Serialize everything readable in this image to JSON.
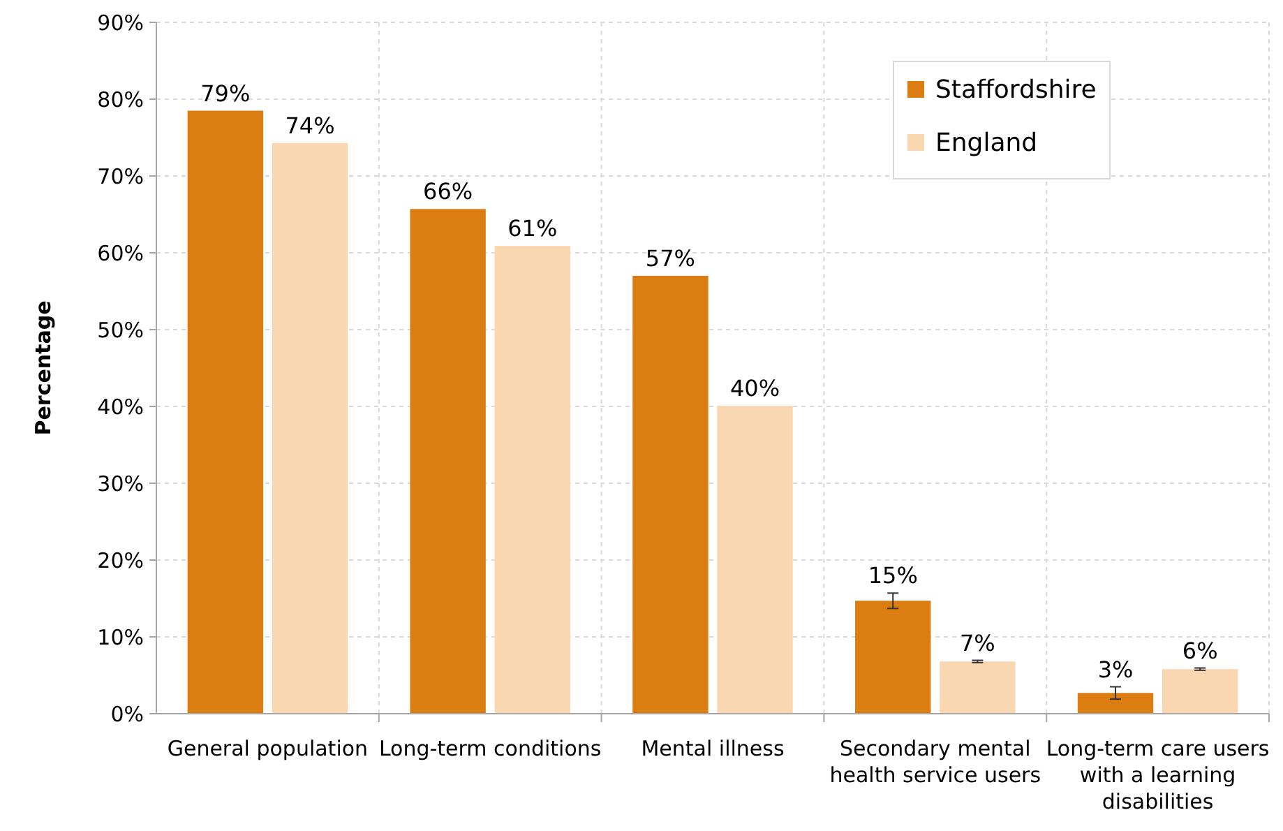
{
  "chart_data": {
    "type": "bar",
    "ylabel": "Percentage",
    "categories": [
      "General population",
      "Long-term conditions",
      "Mental illness",
      "Secondary mental health service users",
      "Long-term care users with a learning disabilities"
    ],
    "series": [
      {
        "name": "Staffordshire",
        "color": "#dc7d11",
        "values": [
          78.5,
          65.7,
          57.0,
          14.7,
          2.7
        ],
        "value_labels": [
          "79%",
          "66%",
          "57%",
          "15%",
          "3%"
        ],
        "errors": [
          null,
          null,
          null,
          1.0,
          0.8
        ]
      },
      {
        "name": "England",
        "color": "#f9d7b1",
        "values": [
          74.3,
          60.9,
          40.1,
          6.8,
          5.8
        ],
        "value_labels": [
          "74%",
          "61%",
          "40%",
          "7%",
          "6%"
        ],
        "errors": [
          null,
          null,
          null,
          0.15,
          0.15
        ]
      }
    ],
    "ylim": [
      0,
      90
    ],
    "yticks": [
      {
        "value": 0,
        "label": "0%"
      },
      {
        "value": 10,
        "label": "10%"
      },
      {
        "value": 20,
        "label": "20%"
      },
      {
        "value": 30,
        "label": "30%"
      },
      {
        "value": 40,
        "label": "40%"
      },
      {
        "value": 50,
        "label": "50%"
      },
      {
        "value": 60,
        "label": "60%"
      },
      {
        "value": 70,
        "label": "70%"
      },
      {
        "value": 80,
        "label": "80%"
      },
      {
        "value": 90,
        "label": "90%"
      }
    ],
    "grid": true,
    "legend": "top right"
  }
}
